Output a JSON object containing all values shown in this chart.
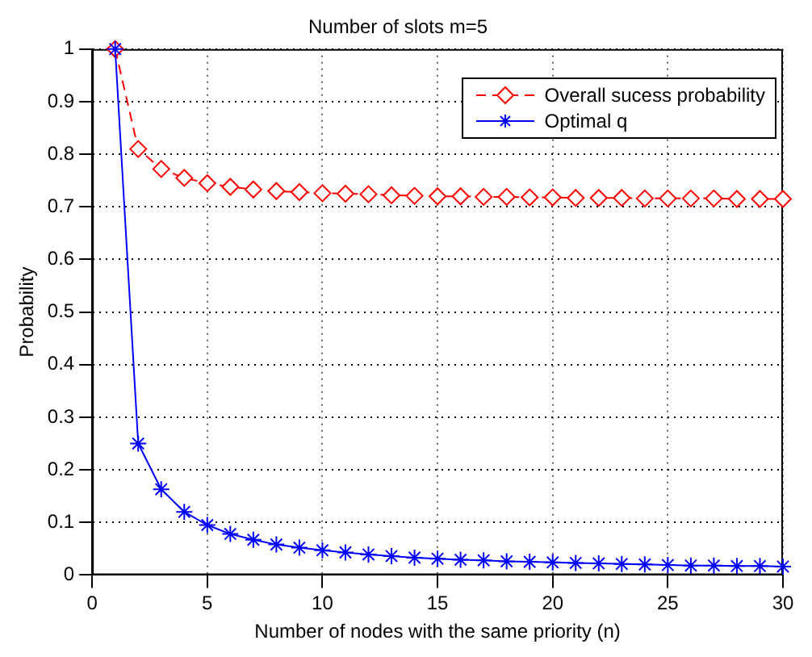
{
  "chart_data": {
    "type": "line",
    "title": "Number of slots m=5",
    "xlabel": "Number of nodes with the same priority (n)",
    "ylabel": "Probability",
    "x": [
      1,
      2,
      3,
      4,
      5,
      6,
      7,
      8,
      9,
      10,
      11,
      12,
      13,
      14,
      15,
      16,
      17,
      18,
      19,
      20,
      21,
      22,
      23,
      24,
      25,
      26,
      27,
      28,
      29,
      30
    ],
    "series": [
      {
        "name": "Overall sucess probability",
        "color": "#ff0000",
        "marker": "diamond",
        "line_style": "dashed",
        "values": [
          1,
          0.81,
          0.772,
          0.755,
          0.745,
          0.738,
          0.733,
          0.73,
          0.728,
          0.726,
          0.725,
          0.724,
          0.722,
          0.721,
          0.72,
          0.72,
          0.719,
          0.719,
          0.718,
          0.718,
          0.717,
          0.717,
          0.717,
          0.716,
          0.716,
          0.716,
          0.716,
          0.715,
          0.715,
          0.715
        ]
      },
      {
        "name": "Optimal q",
        "color": "#0000ff",
        "marker": "cross",
        "line_style": "solid",
        "values": [
          1,
          0.25,
          0.163,
          0.12,
          0.095,
          0.078,
          0.067,
          0.058,
          0.052,
          0.047,
          0.043,
          0.039,
          0.036,
          0.033,
          0.031,
          0.029,
          0.028,
          0.026,
          0.025,
          0.024,
          0.023,
          0.022,
          0.021,
          0.02,
          0.019,
          0.018,
          0.018,
          0.017,
          0.017,
          0.016
        ]
      }
    ],
    "xlim": [
      0,
      30
    ],
    "xticks": [
      0,
      5,
      10,
      15,
      20,
      25,
      30
    ],
    "ylim": [
      0,
      1
    ],
    "yticks": [
      0,
      0.1,
      0.2,
      0.3,
      0.4,
      0.5,
      0.6,
      0.7,
      0.8,
      0.9,
      1
    ],
    "grid": true,
    "legend": "top right"
  }
}
